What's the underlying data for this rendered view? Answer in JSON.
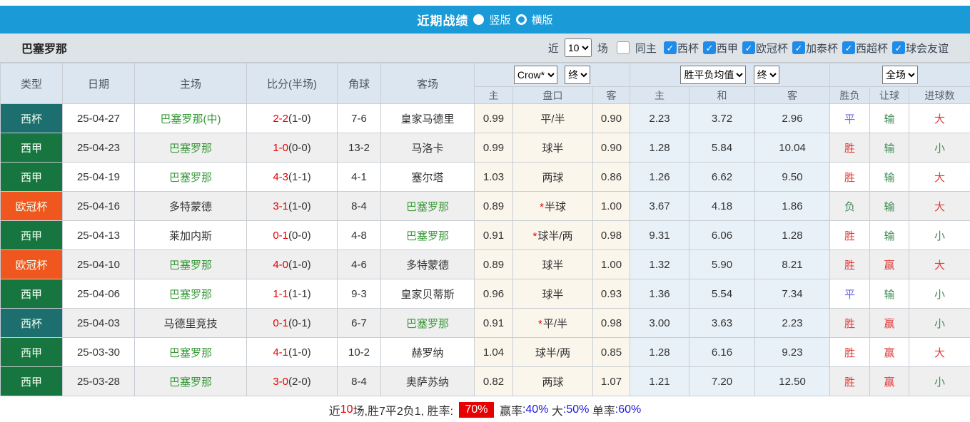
{
  "title_bar": {
    "title": "近期战绩",
    "vertical_label": "竖版",
    "horizontal_label": "横版"
  },
  "filter": {
    "team": "巴塞罗那",
    "near_label": "近",
    "near_value": "10",
    "games_label": "场",
    "same_home_label": "同主",
    "leagues": [
      "西杯",
      "西甲",
      "欧冠杯",
      "加泰杯",
      "西超杯",
      "球会友谊"
    ]
  },
  "icons": {
    "check": "✓"
  },
  "colors": {
    "titlebar_blue": "#1a9bd8",
    "cup_teal": "#1d6e6e",
    "liga_green": "#177540",
    "ucl_orange": "#f0571f",
    "score_red": "#e60000",
    "team_green": "#3a9a3a",
    "result_red": "#e23b3b",
    "result_blue": "#6a6ade",
    "result_green": "#3f8a55",
    "footer_blue": "#1a1adf"
  },
  "table": {
    "headers_left": [
      "类型",
      "日期",
      "主场",
      "比分(半场)",
      "角球",
      "客场"
    ],
    "sub_headers": [
      "主",
      "盘口",
      "客",
      "主",
      "和",
      "客",
      "胜负",
      "让球",
      "进球数"
    ],
    "group1": {
      "select1": "Crow*",
      "select2": "终"
    },
    "group2": {
      "select1": "胜平负均值",
      "select2": "终"
    },
    "group3": {
      "select1": "全场"
    },
    "rows": [
      {
        "type": "西杯",
        "tcls": "cup",
        "date": "25-04-27",
        "home": "巴塞罗那(中)",
        "hcls": "tg",
        "score": "2-2",
        "half": "(1-0)",
        "corner": "7-6",
        "away": "皇家马德里",
        "acls": "",
        "o1": "0.99",
        "star": false,
        "pan": "平/半",
        "o2": "0.90",
        "m1": "2.23",
        "m2": "3.72",
        "m3": "2.96",
        "r1": "平",
        "r1c": "blue",
        "r2": "输",
        "r2c": "green",
        "r3": "大",
        "r3c": "red"
      },
      {
        "type": "西甲",
        "tcls": "liga",
        "date": "25-04-23",
        "home": "巴塞罗那",
        "hcls": "tg",
        "score": "1-0",
        "half": "(0-0)",
        "corner": "13-2",
        "away": "马洛卡",
        "acls": "",
        "o1": "0.99",
        "star": false,
        "pan": "球半",
        "o2": "0.90",
        "m1": "1.28",
        "m2": "5.84",
        "m3": "10.04",
        "r1": "胜",
        "r1c": "red",
        "r2": "输",
        "r2c": "green",
        "r3": "小",
        "r3c": "green"
      },
      {
        "type": "西甲",
        "tcls": "liga",
        "date": "25-04-19",
        "home": "巴塞罗那",
        "hcls": "tg",
        "score": "4-3",
        "half": "(1-1)",
        "corner": "4-1",
        "away": "塞尔塔",
        "acls": "",
        "o1": "1.03",
        "star": false,
        "pan": "两球",
        "o2": "0.86",
        "m1": "1.26",
        "m2": "6.62",
        "m3": "9.50",
        "r1": "胜",
        "r1c": "red",
        "r2": "输",
        "r2c": "green",
        "r3": "大",
        "r3c": "red"
      },
      {
        "type": "欧冠杯",
        "tcls": "ucl",
        "date": "25-04-16",
        "home": "多特蒙德",
        "hcls": "",
        "score": "3-1",
        "half": "(1-0)",
        "corner": "8-4",
        "away": "巴塞罗那",
        "acls": "tg",
        "o1": "0.89",
        "star": true,
        "pan": "半球",
        "o2": "1.00",
        "m1": "3.67",
        "m2": "4.18",
        "m3": "1.86",
        "r1": "负",
        "r1c": "green",
        "r2": "输",
        "r2c": "green",
        "r3": "大",
        "r3c": "red"
      },
      {
        "type": "西甲",
        "tcls": "liga",
        "date": "25-04-13",
        "home": "莱加内斯",
        "hcls": "",
        "score": "0-1",
        "half": "(0-0)",
        "corner": "4-8",
        "away": "巴塞罗那",
        "acls": "tg",
        "o1": "0.91",
        "star": true,
        "pan": "球半/两",
        "o2": "0.98",
        "m1": "9.31",
        "m2": "6.06",
        "m3": "1.28",
        "r1": "胜",
        "r1c": "red",
        "r2": "输",
        "r2c": "green",
        "r3": "小",
        "r3c": "green"
      },
      {
        "type": "欧冠杯",
        "tcls": "ucl",
        "date": "25-04-10",
        "home": "巴塞罗那",
        "hcls": "tg",
        "score": "4-0",
        "half": "(1-0)",
        "corner": "4-6",
        "away": "多特蒙德",
        "acls": "",
        "o1": "0.89",
        "star": false,
        "pan": "球半",
        "o2": "1.00",
        "m1": "1.32",
        "m2": "5.90",
        "m3": "8.21",
        "r1": "胜",
        "r1c": "red",
        "r2": "赢",
        "r2c": "red",
        "r3": "大",
        "r3c": "red"
      },
      {
        "type": "西甲",
        "tcls": "liga",
        "date": "25-04-06",
        "home": "巴塞罗那",
        "hcls": "tg",
        "score": "1-1",
        "half": "(1-1)",
        "corner": "9-3",
        "away": "皇家贝蒂斯",
        "acls": "",
        "o1": "0.96",
        "star": false,
        "pan": "球半",
        "o2": "0.93",
        "m1": "1.36",
        "m2": "5.54",
        "m3": "7.34",
        "r1": "平",
        "r1c": "blue",
        "r2": "输",
        "r2c": "green",
        "r3": "小",
        "r3c": "green"
      },
      {
        "type": "西杯",
        "tcls": "cup",
        "date": "25-04-03",
        "home": "马德里竞技",
        "hcls": "",
        "score": "0-1",
        "half": "(0-1)",
        "corner": "6-7",
        "away": "巴塞罗那",
        "acls": "tg",
        "o1": "0.91",
        "star": true,
        "pan": "平/半",
        "o2": "0.98",
        "m1": "3.00",
        "m2": "3.63",
        "m3": "2.23",
        "r1": "胜",
        "r1c": "red",
        "r2": "赢",
        "r2c": "red",
        "r3": "小",
        "r3c": "green"
      },
      {
        "type": "西甲",
        "tcls": "liga",
        "date": "25-03-30",
        "home": "巴塞罗那",
        "hcls": "tg",
        "score": "4-1",
        "half": "(1-0)",
        "corner": "10-2",
        "away": "赫罗纳",
        "acls": "",
        "o1": "1.04",
        "star": false,
        "pan": "球半/两",
        "o2": "0.85",
        "m1": "1.28",
        "m2": "6.16",
        "m3": "9.23",
        "r1": "胜",
        "r1c": "red",
        "r2": "赢",
        "r2c": "red",
        "r3": "大",
        "r3c": "red"
      },
      {
        "type": "西甲",
        "tcls": "liga",
        "date": "25-03-28",
        "home": "巴塞罗那",
        "hcls": "tg",
        "score": "3-0",
        "half": "(2-0)",
        "corner": "8-4",
        "away": "奥萨苏纳",
        "acls": "",
        "o1": "0.82",
        "star": false,
        "pan": "两球",
        "o2": "1.07",
        "m1": "1.21",
        "m2": "7.20",
        "m3": "12.50",
        "r1": "胜",
        "r1c": "red",
        "r2": "赢",
        "r2c": "red",
        "r3": "小",
        "r3c": "green"
      }
    ]
  },
  "footer": {
    "segments": [
      {
        "t": "近",
        "c": ""
      },
      {
        "t": "10",
        "c": "fred"
      },
      {
        "t": "场,胜7平2负1, 胜率: ",
        "c": ""
      },
      {
        "t": "70%",
        "c": "badge"
      },
      {
        "t": " 赢率",
        "c": ""
      },
      {
        "t": ":40%",
        "c": "fblue"
      },
      {
        "t": " 大",
        "c": ""
      },
      {
        "t": ":50%",
        "c": "fblue"
      },
      {
        "t": " 单率",
        "c": ""
      },
      {
        "t": ":60%",
        "c": "fblue"
      }
    ]
  }
}
